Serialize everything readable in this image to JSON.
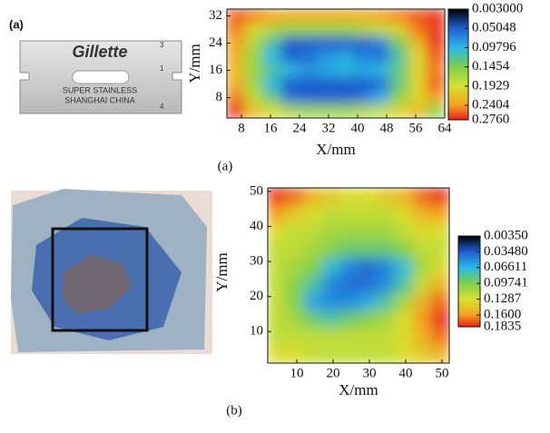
{
  "figure": {
    "panel_label": "(a)",
    "captions": [
      "(a)",
      "(b)"
    ],
    "blade_text": [
      "Gillette",
      "SUPER STAINLESS",
      "SHANGHAI CHINA",
      "3",
      "1",
      "4"
    ]
  },
  "chart_data": [
    {
      "type": "heatmap",
      "xlabel": "X/mm",
      "ylabel": "Y/mm",
      "xlim": [
        4,
        64
      ],
      "ylim": [
        2,
        34
      ],
      "xticks": [
        8,
        16,
        24,
        32,
        40,
        48,
        56,
        64
      ],
      "yticks": [
        8,
        16,
        24,
        32
      ],
      "x": [
        6.5,
        11.5,
        16.5,
        21.5,
        26.5,
        31.5,
        36.5,
        41.5,
        46.5,
        51.5,
        56.5,
        61.5
      ],
      "y": [
        32,
        28,
        24,
        20,
        16,
        12,
        8,
        4
      ],
      "values": [
        [
          0.26,
          0.25,
          0.24,
          0.23,
          0.23,
          0.23,
          0.23,
          0.23,
          0.24,
          0.25,
          0.26,
          0.27
        ],
        [
          0.25,
          0.2,
          0.17,
          0.16,
          0.16,
          0.16,
          0.16,
          0.17,
          0.18,
          0.2,
          0.25,
          0.27
        ],
        [
          0.24,
          0.17,
          0.12,
          0.05,
          0.05,
          0.05,
          0.05,
          0.05,
          0.07,
          0.14,
          0.22,
          0.27
        ],
        [
          0.23,
          0.16,
          0.1,
          0.05,
          0.06,
          0.08,
          0.09,
          0.07,
          0.06,
          0.12,
          0.2,
          0.26
        ],
        [
          0.22,
          0.16,
          0.12,
          0.1,
          0.08,
          0.09,
          0.1,
          0.09,
          0.1,
          0.13,
          0.2,
          0.25
        ],
        [
          0.23,
          0.16,
          0.1,
          0.05,
          0.05,
          0.05,
          0.05,
          0.05,
          0.06,
          0.13,
          0.2,
          0.26
        ],
        [
          0.25,
          0.18,
          0.13,
          0.06,
          0.05,
          0.05,
          0.05,
          0.06,
          0.09,
          0.15,
          0.2,
          0.24
        ],
        [
          0.27,
          0.22,
          0.19,
          0.17,
          0.16,
          0.16,
          0.16,
          0.17,
          0.18,
          0.2,
          0.22,
          0.15
        ]
      ],
      "zlim": [
        0.003,
        0.276
      ],
      "zticks": [
        {
          "value": 0.003,
          "label": "0.003000"
        },
        0.05048,
        0.09796,
        0.1454,
        0.1929,
        0.2404,
        {
          "value": 0.276,
          "label": "0.2760"
        }
      ],
      "colors": [
        "#000000",
        "#1f5fd0",
        "#2ab8e8",
        "#7fd04a",
        "#d8e030",
        "#f5a020",
        "#e8201c"
      ]
    },
    {
      "type": "heatmap",
      "xlabel": "X/mm",
      "ylabel": "Y/mm",
      "xlim": [
        2,
        52
      ],
      "ylim": [
        1,
        51
      ],
      "xticks": [
        10,
        20,
        30,
        40,
        50
      ],
      "yticks": [
        10,
        20,
        30,
        40,
        50
      ],
      "x": [
        4.5,
        9.5,
        14.5,
        19.5,
        24.5,
        29.5,
        34.5,
        39.5,
        44.5,
        49.5
      ],
      "y": [
        48.5,
        43.5,
        38.5,
        33.5,
        28.5,
        23.5,
        18.5,
        13.5,
        8.5,
        3.5
      ],
      "values": [
        [
          0.18,
          0.17,
          0.15,
          0.14,
          0.13,
          0.13,
          0.14,
          0.15,
          0.17,
          0.18
        ],
        [
          0.16,
          0.14,
          0.13,
          0.12,
          0.12,
          0.12,
          0.12,
          0.13,
          0.15,
          0.16
        ],
        [
          0.13,
          0.12,
          0.12,
          0.11,
          0.11,
          0.11,
          0.11,
          0.12,
          0.13,
          0.13
        ],
        [
          0.12,
          0.12,
          0.11,
          0.1,
          0.09,
          0.09,
          0.09,
          0.1,
          0.12,
          0.12
        ],
        [
          0.12,
          0.11,
          0.1,
          0.07,
          0.05,
          0.04,
          0.05,
          0.07,
          0.11,
          0.13
        ],
        [
          0.12,
          0.1,
          0.08,
          0.05,
          0.04,
          0.04,
          0.05,
          0.08,
          0.12,
          0.15
        ],
        [
          0.12,
          0.1,
          0.06,
          0.05,
          0.05,
          0.06,
          0.08,
          0.11,
          0.15,
          0.17
        ],
        [
          0.12,
          0.11,
          0.09,
          0.08,
          0.09,
          0.1,
          0.11,
          0.13,
          0.16,
          0.18
        ],
        [
          0.12,
          0.12,
          0.12,
          0.12,
          0.12,
          0.12,
          0.12,
          0.13,
          0.15,
          0.17
        ],
        [
          0.13,
          0.13,
          0.12,
          0.12,
          0.12,
          0.12,
          0.12,
          0.13,
          0.14,
          0.15
        ]
      ],
      "zlim": [
        0.0035,
        0.1835
      ],
      "zticks": [
        {
          "value": 0.0035,
          "label": "0.00350"
        },
        {
          "value": 0.0348,
          "label": "0.03480"
        },
        0.06611,
        0.09741,
        0.1287,
        {
          "value": 0.16,
          "label": "0.1600"
        },
        0.1835
      ],
      "colors": [
        "#000000",
        "#1f5fd0",
        "#2ab8e8",
        "#7fd04a",
        "#d8e030",
        "#f5a020",
        "#e8201c"
      ]
    }
  ]
}
